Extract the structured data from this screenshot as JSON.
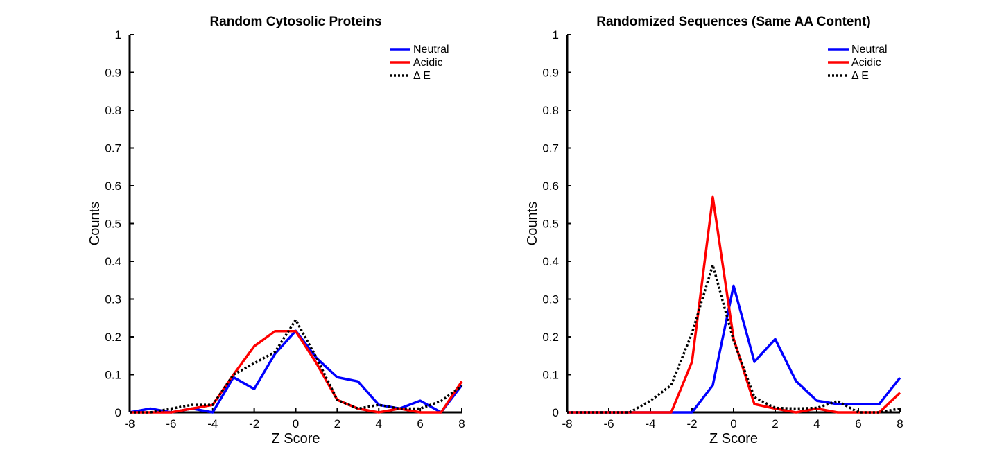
{
  "chart_data": [
    {
      "type": "line",
      "title": "Random Cytosolic Proteins",
      "xlabel": "Z Score",
      "ylabel": "Counts",
      "xlim": [
        -8,
        8
      ],
      "ylim": [
        0,
        1
      ],
      "xticks": [
        "-8",
        "-6",
        "-4",
        "-2",
        "0",
        "2",
        "4",
        "6",
        "8"
      ],
      "yticks": [
        "0",
        "0.1",
        "0.2",
        "0.3",
        "0.4",
        "0.5",
        "0.6",
        "0.7",
        "0.8",
        "0.9",
        "1"
      ],
      "grid": false,
      "legend_position": "top-right",
      "x": [
        -8,
        -7,
        -6,
        -5,
        -4,
        -3,
        -2,
        -1,
        0,
        1,
        2,
        3,
        4,
        5,
        6,
        7,
        8
      ],
      "series": [
        {
          "name": "Neutral",
          "color": "#0000ff",
          "dash": "solid",
          "values": [
            0,
            0.01,
            0,
            0.01,
            0,
            0.093,
            0.062,
            0.155,
            0.216,
            0.144,
            0.093,
            0.082,
            0.02,
            0.01,
            0.031,
            0,
            0.072
          ]
        },
        {
          "name": "Acidic",
          "color": "#ff0000",
          "dash": "solid",
          "values": [
            0,
            0,
            0,
            0.01,
            0.02,
            0.1,
            0.175,
            0.215,
            0.215,
            0.13,
            0.033,
            0.01,
            0,
            0.01,
            0,
            0,
            0.082
          ]
        },
        {
          "name": "Δ E",
          "color": "#000000",
          "dash": "dotted",
          "values": [
            0,
            0,
            0.01,
            0.02,
            0.02,
            0.1,
            0.13,
            0.16,
            0.245,
            0.145,
            0.033,
            0.01,
            0.02,
            0.01,
            0.01,
            0.03,
            0.07
          ]
        }
      ]
    },
    {
      "type": "line",
      "title": "Randomized Sequences (Same AA Content)",
      "xlabel": "Z Score",
      "ylabel": "Counts",
      "xlim": [
        -8,
        8
      ],
      "ylim": [
        0,
        1
      ],
      "xticks": [
        "-8",
        "-6",
        "-4",
        "-2",
        "0",
        "2",
        "4",
        "6",
        "8"
      ],
      "yticks": [
        "0",
        "0.1",
        "0.2",
        "0.3",
        "0.4",
        "0.5",
        "0.6",
        "0.7",
        "0.8",
        "0.9",
        "1"
      ],
      "grid": false,
      "legend_position": "top-right",
      "x": [
        -8,
        -7,
        -6,
        -5,
        -4,
        -3,
        -2,
        -1,
        0,
        1,
        2,
        3,
        4,
        5,
        6,
        7,
        8
      ],
      "series": [
        {
          "name": "Neutral",
          "color": "#0000ff",
          "dash": "solid",
          "values": [
            0,
            0,
            0,
            0,
            0,
            0,
            0,
            0.072,
            0.335,
            0.134,
            0.194,
            0.083,
            0.031,
            0.022,
            0.022,
            0.022,
            0.092
          ]
        },
        {
          "name": "Acidic",
          "color": "#ff0000",
          "dash": "solid",
          "values": [
            0,
            0,
            0,
            0,
            0,
            0,
            0.134,
            0.57,
            0.195,
            0.022,
            0.01,
            0,
            0.01,
            0,
            0,
            0,
            0.052
          ]
        },
        {
          "name": "Δ E",
          "color": "#000000",
          "dash": "dotted",
          "values": [
            0,
            0,
            0,
            0,
            0.031,
            0.072,
            0.21,
            0.39,
            0.19,
            0.04,
            0.012,
            0.01,
            0.012,
            0.03,
            0,
            0,
            0.01
          ]
        }
      ]
    }
  ]
}
